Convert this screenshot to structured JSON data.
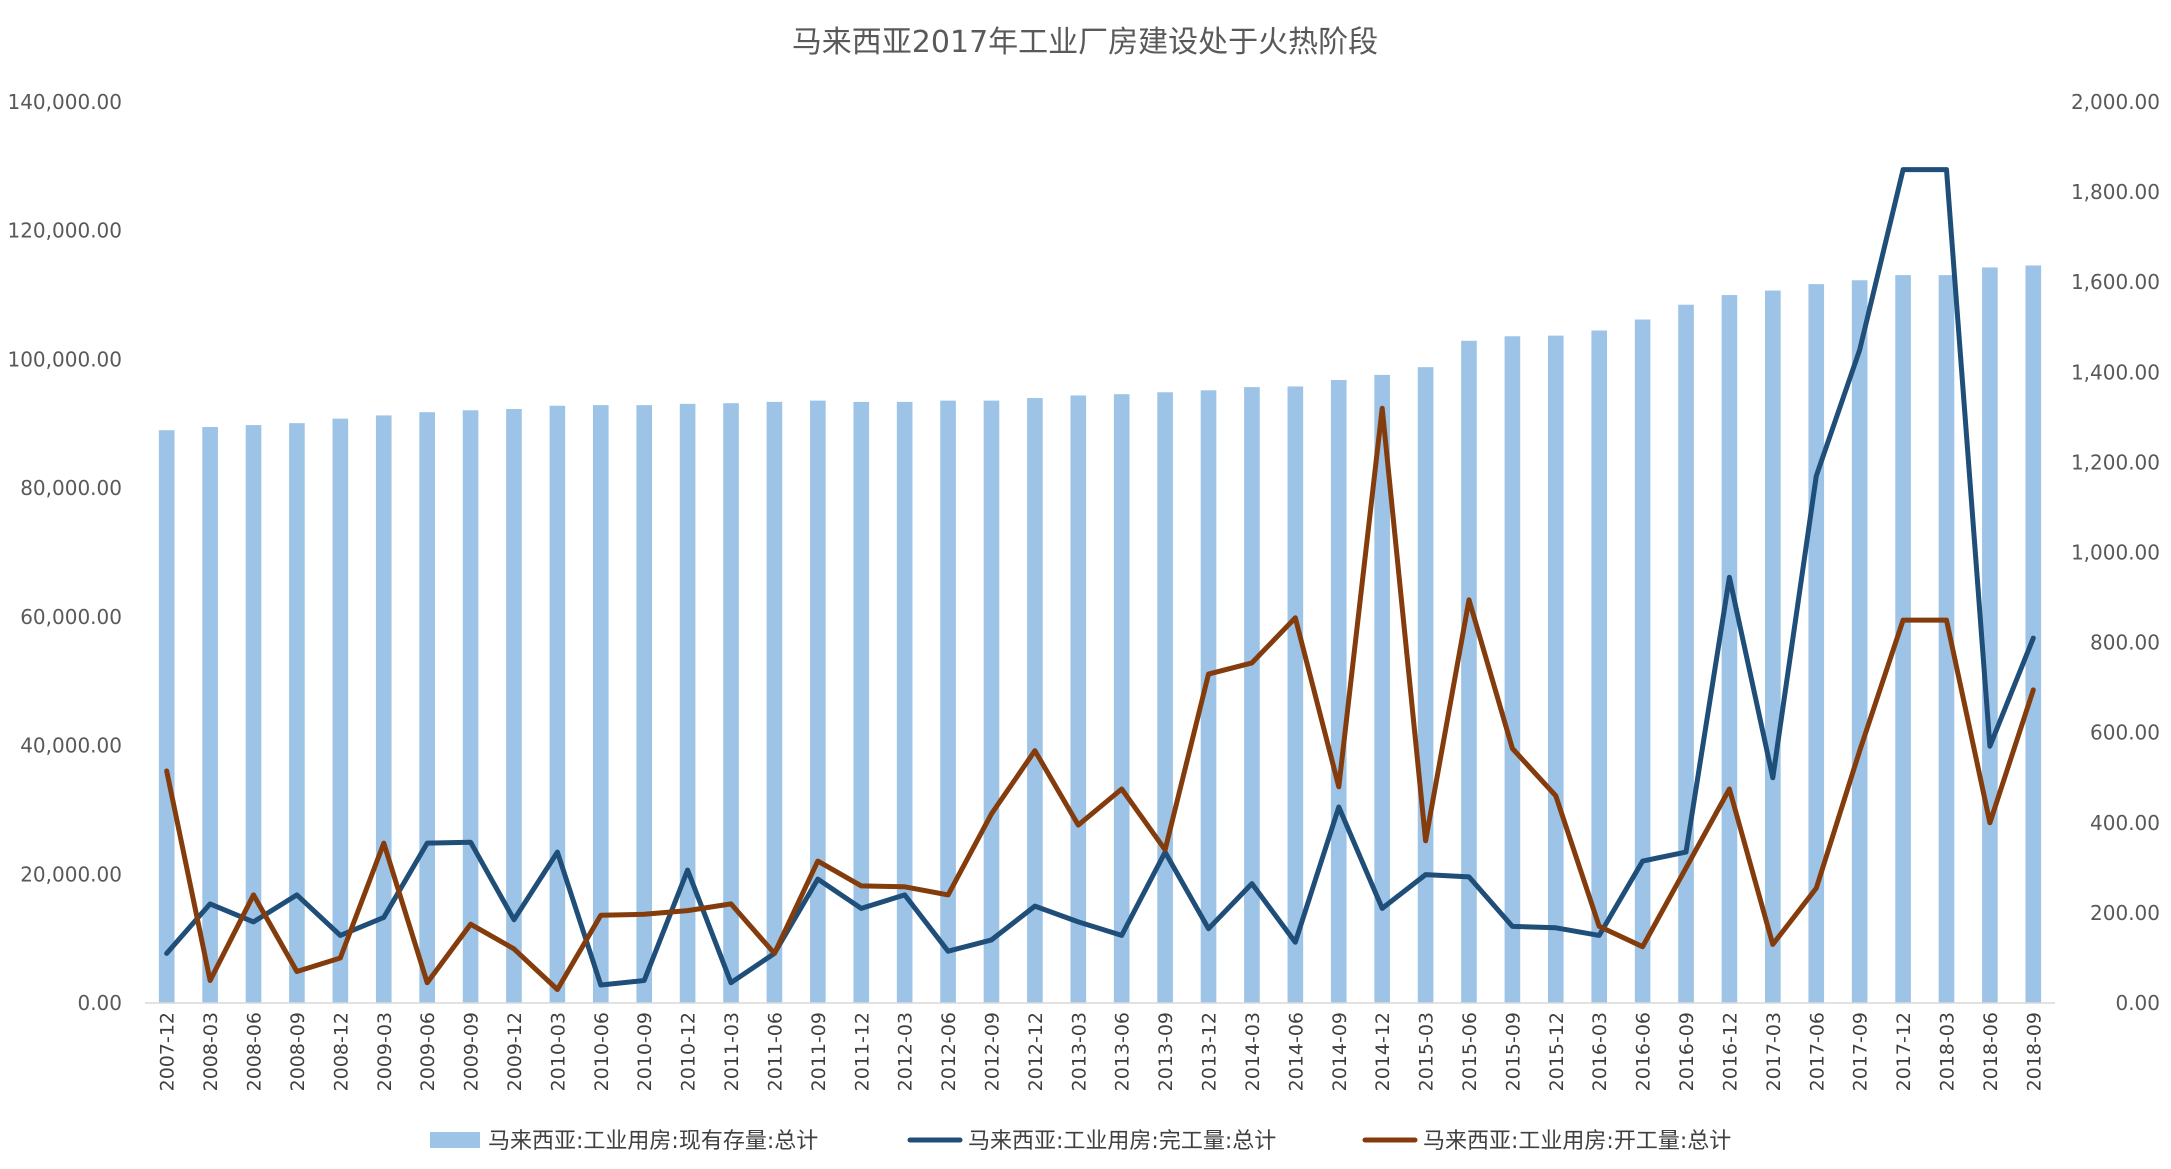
{
  "chart_data": {
    "type": "bar",
    "title": "马来西亚2017年工业厂房建设处于火热阶段",
    "categories": [
      "2007-12",
      "2008-03",
      "2008-06",
      "2008-09",
      "2008-12",
      "2009-03",
      "2009-06",
      "2009-09",
      "2009-12",
      "2010-03",
      "2010-06",
      "2010-09",
      "2010-12",
      "2011-03",
      "2011-06",
      "2011-09",
      "2011-12",
      "2012-03",
      "2012-06",
      "2012-09",
      "2012-12",
      "2013-03",
      "2013-06",
      "2013-09",
      "2013-12",
      "2014-03",
      "2014-06",
      "2014-09",
      "2014-12",
      "2015-03",
      "2015-06",
      "2015-09",
      "2015-12",
      "2016-03",
      "2016-06",
      "2016-09",
      "2016-12",
      "2017-03",
      "2017-06",
      "2017-09",
      "2017-12",
      "2018-03",
      "2018-06",
      "2018-09"
    ],
    "y_left": {
      "min": 0,
      "max": 140000,
      "ticks": [
        "0.00",
        "20,000.00",
        "40,000.00",
        "60,000.00",
        "80,000.00",
        "100,000.00",
        "120,000.00",
        "140,000.00"
      ]
    },
    "y_right": {
      "min": 0,
      "max": 2000,
      "ticks": [
        "0.00",
        "200.00",
        "400.00",
        "600.00",
        "800.00",
        "1,000.00",
        "1,200.00",
        "1,400.00",
        "1,600.00",
        "1,800.00",
        "2,000.00"
      ]
    },
    "grid": false,
    "legend_position": "bottom",
    "series": [
      {
        "name": "马来西亚:工业用房:现有存量:总计",
        "type": "bar",
        "axis": "left",
        "color": "#9DC3E6",
        "values": [
          89000,
          89500,
          89800,
          90100,
          90800,
          91300,
          91800,
          92100,
          92300,
          92800,
          92900,
          92900,
          93100,
          93200,
          93400,
          93600,
          93400,
          93400,
          93600,
          93600,
          94000,
          94400,
          94600,
          94900,
          95200,
          95700,
          95800,
          96800,
          97600,
          98800,
          102900,
          103600,
          103700,
          104500,
          106200,
          108500,
          110000,
          110700,
          111700,
          112300,
          113100,
          113100,
          114300,
          114600
        ]
      },
      {
        "name": "马来西亚:工业用房:完工量:总计",
        "type": "line",
        "axis": "right",
        "color": "#1F4E79",
        "values": [
          110,
          220,
          180,
          240,
          150,
          190,
          355,
          357,
          185,
          335,
          40,
          50,
          295,
          45,
          110,
          275,
          210,
          240,
          115,
          140,
          215,
          180,
          150,
          335,
          165,
          265,
          135,
          435,
          210,
          285,
          280,
          170,
          167,
          150,
          315,
          335,
          945,
          500,
          1170,
          1450,
          1850,
          1850,
          570,
          810
        ]
      },
      {
        "name": "马来西亚:工业用房:开工量:总计",
        "type": "line",
        "axis": "right",
        "color": "#843C0C",
        "values": [
          515,
          50,
          240,
          70,
          100,
          355,
          45,
          175,
          120,
          30,
          195,
          197,
          205,
          220,
          110,
          315,
          260,
          258,
          240,
          420,
          560,
          395,
          475,
          340,
          730,
          755,
          855,
          480,
          1320,
          360,
          895,
          565,
          460,
          170,
          125,
          300,
          475,
          130,
          255,
          560,
          850,
          850,
          400,
          695
        ]
      }
    ]
  }
}
